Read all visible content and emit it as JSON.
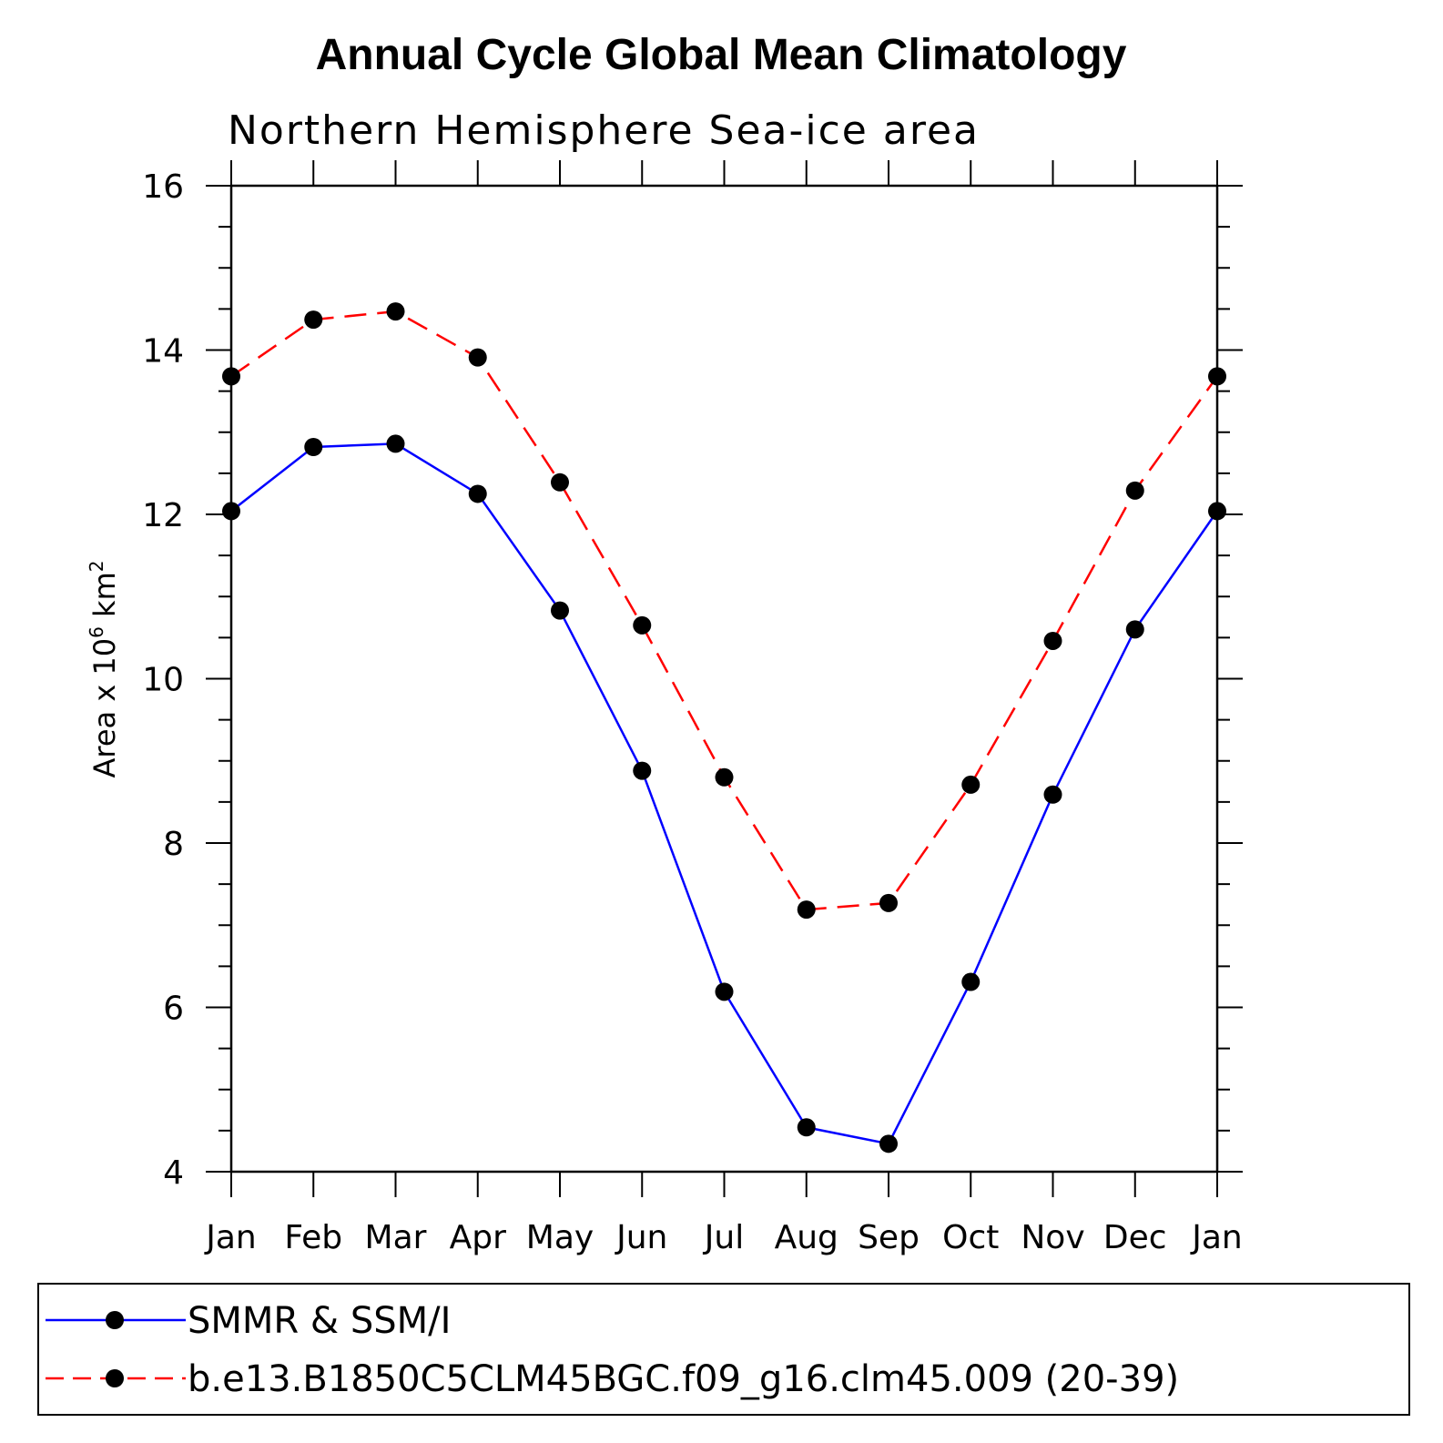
{
  "chart_data": {
    "type": "line",
    "title": "Annual Cycle Global Mean Climatology",
    "subtitle": "Northern Hemisphere Sea-ice area",
    "ylabel": {
      "base": "Area x 10",
      "exp1": "6",
      "unit": " km",
      "exp2": "2"
    },
    "xlabel": "",
    "categories": [
      "Jan",
      "Feb",
      "Mar",
      "Apr",
      "May",
      "Jun",
      "Jul",
      "Aug",
      "Sep",
      "Oct",
      "Nov",
      "Dec",
      "Jan"
    ],
    "ylim": [
      4,
      16
    ],
    "yticks": [
      "4",
      "6",
      "8",
      "10",
      "12",
      "14",
      "16"
    ],
    "series": [
      {
        "name": "SMMR & SSM/I",
        "color": "#0000ff",
        "dash": "solid",
        "values": [
          12.04,
          12.82,
          12.86,
          12.25,
          10.83,
          8.88,
          6.19,
          4.54,
          4.34,
          6.31,
          8.59,
          10.6,
          12.04
        ]
      },
      {
        "name": "b.e13.B1850C5CLM45BGC.f09_g16.clm45.009 (20-39)",
        "color": "#ff0000",
        "dash": "dashed",
        "values": [
          13.68,
          14.37,
          14.47,
          13.91,
          12.39,
          10.65,
          8.8,
          7.19,
          7.27,
          8.71,
          10.46,
          12.29,
          13.68
        ]
      }
    ],
    "marker_color": "#000000",
    "legend": "bottom"
  }
}
